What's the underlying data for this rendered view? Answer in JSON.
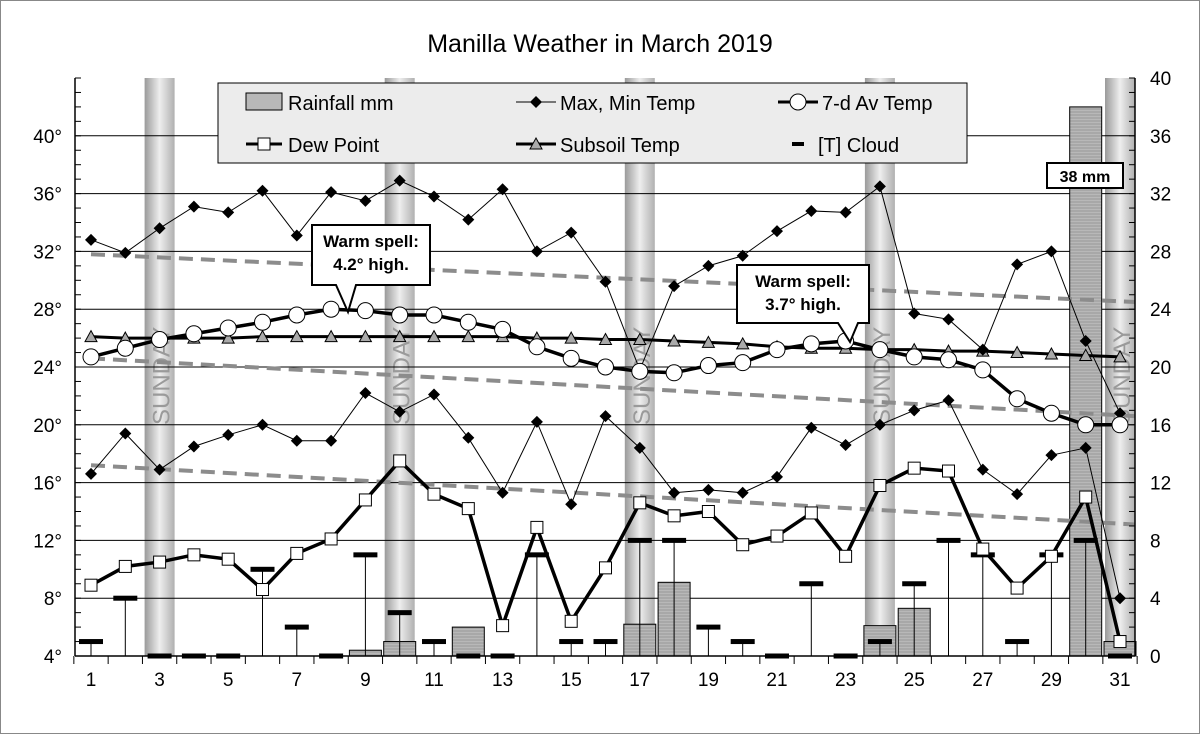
{
  "chart_data": {
    "type": "line",
    "title": "Manilla Weather in March 2019",
    "x": [
      1,
      2,
      3,
      4,
      5,
      6,
      7,
      8,
      9,
      10,
      11,
      12,
      13,
      14,
      15,
      16,
      17,
      18,
      19,
      20,
      21,
      22,
      23,
      24,
      25,
      26,
      27,
      28,
      29,
      30,
      31
    ],
    "x_tick_labels": [
      "1",
      "3",
      "5",
      "7",
      "9",
      "11",
      "13",
      "15",
      "17",
      "19",
      "21",
      "23",
      "25",
      "27",
      "29",
      "31"
    ],
    "left_axis": {
      "ylim": [
        4,
        44
      ],
      "ticks": [
        "4°",
        "8°",
        "12°",
        "16°",
        "20°",
        "24°",
        "28°",
        "32°",
        "36°",
        "40°"
      ]
    },
    "right_axis": {
      "ylim": [
        0,
        40
      ],
      "ticks": [
        "0",
        "4",
        "8",
        "12",
        "16",
        "20",
        "24",
        "28",
        "32",
        "36",
        "40"
      ]
    },
    "grid": true,
    "legend_placement": "top-center",
    "sunday_label": "SUNDAY",
    "sundays": [
      3,
      10,
      17,
      24,
      31
    ],
    "series": [
      {
        "name": "Rainfall mm",
        "axis": "right",
        "kind": "bar",
        "values": [
          0,
          0,
          0,
          0,
          0,
          0,
          0,
          0,
          0.4,
          1.0,
          0,
          2.0,
          0,
          0,
          0,
          0,
          2.2,
          5.1,
          0,
          0,
          0,
          0,
          0,
          2.1,
          3.3,
          0,
          0,
          0,
          0,
          38,
          1.0
        ]
      },
      {
        "name": "Max, Min Temp",
        "axis": "left",
        "kind": "line",
        "max": [
          32.8,
          31.9,
          33.6,
          35.1,
          34.7,
          36.2,
          33.1,
          36.1,
          35.5,
          36.9,
          35.8,
          34.2,
          36.3,
          32.0,
          33.3,
          29.9,
          23.8,
          29.6,
          31.0,
          31.7,
          33.4,
          34.8,
          34.7,
          36.5,
          27.7,
          27.3,
          25.2,
          31.1,
          32.0,
          25.8,
          20.8
        ],
        "min": [
          16.6,
          19.4,
          16.9,
          18.5,
          19.3,
          20.0,
          18.9,
          18.9,
          22.2,
          20.9,
          22.1,
          19.1,
          15.3,
          20.2,
          14.5,
          20.6,
          18.4,
          15.3,
          15.5,
          15.3,
          16.4,
          19.8,
          18.6,
          20.0,
          21.0,
          21.7,
          16.9,
          15.2,
          17.9,
          18.4,
          8.0
        ]
      },
      {
        "name": "7-d Av Temp",
        "axis": "left",
        "kind": "line",
        "values": [
          24.7,
          25.3,
          25.9,
          26.3,
          26.7,
          27.1,
          27.6,
          28.0,
          27.9,
          27.6,
          27.6,
          27.1,
          26.6,
          25.4,
          24.6,
          24.0,
          23.7,
          23.6,
          24.1,
          24.3,
          25.2,
          25.6,
          25.8,
          25.2,
          24.7,
          24.5,
          23.8,
          21.8,
          20.8,
          20.0,
          20.0
        ]
      },
      {
        "name": "Dew Point",
        "axis": "left",
        "kind": "line",
        "values": [
          8.9,
          10.2,
          10.5,
          11.0,
          10.7,
          8.6,
          11.1,
          12.1,
          14.8,
          17.5,
          15.2,
          14.2,
          6.1,
          12.9,
          6.4,
          10.1,
          14.6,
          13.7,
          14.0,
          11.7,
          12.3,
          13.9,
          10.9,
          15.8,
          17.0,
          16.8,
          11.4,
          8.7,
          10.9,
          15.0,
          5.0
        ]
      },
      {
        "name": "Subsoil Temp",
        "axis": "left",
        "kind": "line",
        "values": [
          26.1,
          26.0,
          26.0,
          26.0,
          26.0,
          26.1,
          26.1,
          26.1,
          26.1,
          26.1,
          26.1,
          26.1,
          26.1,
          26.0,
          26.0,
          25.9,
          25.9,
          25.8,
          25.7,
          25.6,
          25.4,
          25.3,
          25.3,
          25.2,
          25.2,
          25.1,
          25.1,
          25.0,
          24.9,
          24.8,
          24.7
        ]
      },
      {
        "name": "[T] Cloud",
        "axis": "right",
        "kind": "marker",
        "values": [
          1,
          4,
          0,
          0,
          0,
          6,
          2,
          0,
          7,
          3,
          1,
          0,
          0,
          7,
          1,
          1,
          8,
          8,
          2,
          1,
          0,
          5,
          0,
          1,
          5,
          8,
          7,
          1,
          7,
          8,
          0
        ]
      }
    ],
    "trend_lines": [
      {
        "of": "max",
        "start": 31.8,
        "end": 28.5
      },
      {
        "of": "average",
        "start": 24.6,
        "end": 20.6
      },
      {
        "of": "min",
        "start": 17.2,
        "end": 13.1
      }
    ],
    "annotations": [
      {
        "text_line1": "Warm spell:",
        "text_line2": "4.2° high.",
        "day": 9
      },
      {
        "text_line1": "Warm spell:",
        "text_line2": "3.7° high.",
        "day": 23
      },
      {
        "text": "38 mm",
        "day": 30
      }
    ],
    "colors": {
      "rain": "#b8b8b8",
      "trend": "#8c8c8c",
      "sunday": "#c8c8c8",
      "legend_bg": "#ececec"
    }
  }
}
